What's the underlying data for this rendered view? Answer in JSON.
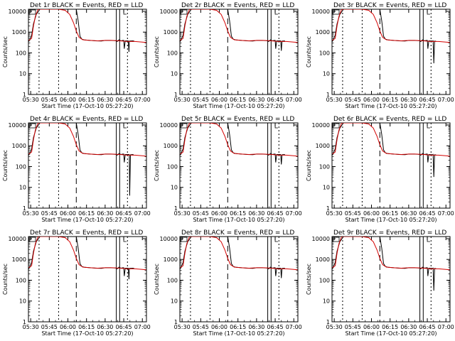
{
  "chart_data": [
    {
      "type": "line",
      "title": "Det 1r BLACK = Events, RED = LLD",
      "variant": 0
    },
    {
      "type": "line",
      "title": "Det 2r BLACK = Events, RED = LLD",
      "variant": 1
    },
    {
      "type": "line",
      "title": "Det 3r BLACK = Events, RED = LLD",
      "variant": 2
    },
    {
      "type": "line",
      "title": "Det 4r BLACK = Events, RED = LLD",
      "variant": 3
    },
    {
      "type": "line",
      "title": "Det 5r BLACK = Events, RED = LLD",
      "variant": 1
    },
    {
      "type": "line",
      "title": "Det 6r BLACK = Events, RED = LLD",
      "variant": 2
    },
    {
      "type": "line",
      "title": "Det 7r BLACK = Events, RED = LLD",
      "variant": 0
    },
    {
      "type": "line",
      "title": "Det 8r BLACK = Events, RED = LLD",
      "variant": 1
    },
    {
      "type": "line",
      "title": "Det 9r BLACK = Events, RED = LLD",
      "variant": 2
    }
  ],
  "shared": {
    "xlabel": "Start Time (17-Oct-10 05:27:20)",
    "ylabel": "Counts/sec",
    "x_ticks": [
      "05:30",
      "05:45",
      "06:00",
      "06:15",
      "06:30",
      "06:45",
      "07:00"
    ],
    "y_ticks": [
      "1",
      "10",
      "100",
      "1000",
      "10000"
    ],
    "y_scale": "log",
    "colors": {
      "events": "#000000",
      "lld": "#d40000"
    }
  }
}
